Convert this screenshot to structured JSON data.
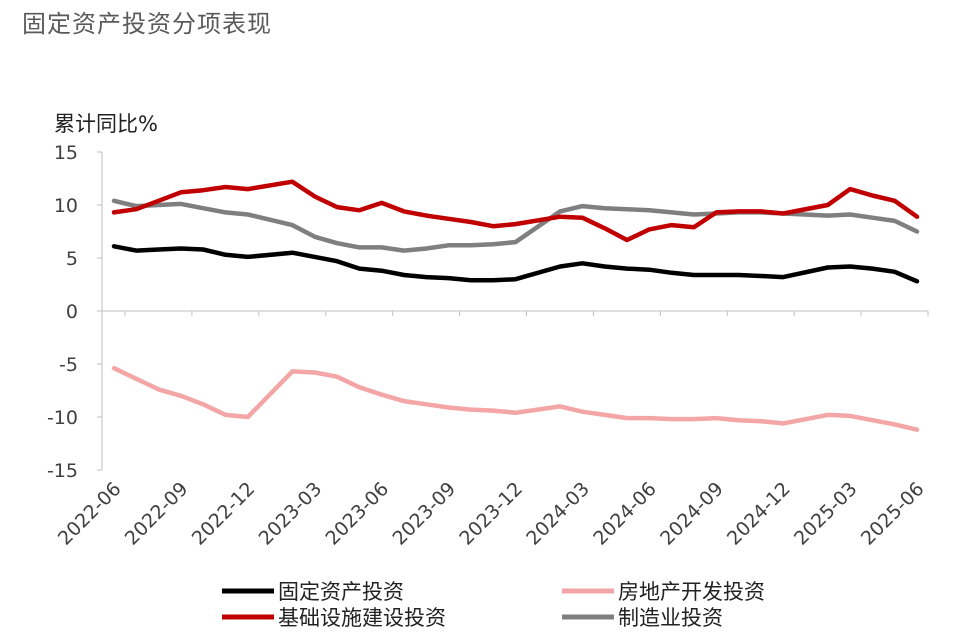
{
  "page": {
    "title": "固定资产投资分项表现"
  },
  "chart_data": {
    "type": "line",
    "ylabel": "累计同比%",
    "ylim": [
      -15,
      15
    ],
    "yticks": [
      "15",
      "10",
      "5",
      "0",
      "-5",
      "-10",
      "-15"
    ],
    "x": [
      "2022-06",
      "2022-07",
      "2022-08",
      "2022-09",
      "2022-10",
      "2022-11",
      "2022-12",
      "2023-01",
      "2023-02",
      "2023-03",
      "2023-04",
      "2023-05",
      "2023-06",
      "2023-07",
      "2023-08",
      "2023-09",
      "2023-10",
      "2023-11",
      "2023-12",
      "2024-01",
      "2024-02",
      "2024-03",
      "2024-04",
      "2024-05",
      "2024-06",
      "2024-07",
      "2024-08",
      "2024-09",
      "2024-10",
      "2024-11",
      "2024-12",
      "2025-01",
      "2025-02",
      "2025-03",
      "2025-04",
      "2025-05",
      "2025-06"
    ],
    "xtick_labels": [
      "2022-06",
      "2022-09",
      "2022-12",
      "2023-03",
      "2023-06",
      "2023-09",
      "2023-12",
      "2024-03",
      "2024-06",
      "2024-09",
      "2024-12",
      "2025-03",
      "2025-06"
    ],
    "grid": false,
    "legend_position": "bottom",
    "series": [
      {
        "name": "固定资产投资",
        "color": "#000000",
        "values": [
          6.1,
          5.7,
          5.8,
          5.9,
          5.8,
          5.3,
          5.1,
          null,
          5.5,
          5.1,
          4.7,
          4.0,
          3.8,
          3.4,
          3.2,
          3.1,
          2.9,
          2.9,
          3.0,
          null,
          4.2,
          4.5,
          4.2,
          4.0,
          3.9,
          3.6,
          3.4,
          3.4,
          3.4,
          3.3,
          3.2,
          null,
          4.1,
          4.2,
          4.0,
          3.7,
          2.8
        ]
      },
      {
        "name": "房地产开发投资",
        "color": "#f4a6a6",
        "values": [
          -5.4,
          -6.4,
          -7.4,
          -8.0,
          -8.8,
          -9.8,
          -10.0,
          null,
          -5.7,
          -5.8,
          -6.2,
          -7.2,
          -7.9,
          -8.5,
          -8.8,
          -9.1,
          -9.3,
          -9.4,
          -9.6,
          null,
          -9.0,
          -9.5,
          -9.8,
          -10.1,
          -10.1,
          -10.2,
          -10.2,
          -10.1,
          -10.3,
          -10.4,
          -10.6,
          null,
          -9.8,
          -9.9,
          -10.3,
          -10.7,
          -11.2
        ]
      },
      {
        "name": "基础设施建设投资",
        "color": "#c00000",
        "values": [
          9.3,
          9.6,
          10.4,
          11.2,
          11.4,
          11.7,
          11.5,
          null,
          12.2,
          10.8,
          9.8,
          9.5,
          10.2,
          9.4,
          9.0,
          8.7,
          8.4,
          8.0,
          8.2,
          null,
          8.9,
          8.8,
          7.8,
          6.7,
          7.7,
          8.1,
          7.9,
          9.3,
          9.4,
          9.4,
          9.2,
          null,
          10.0,
          11.5,
          10.9,
          10.4,
          8.9
        ]
      },
      {
        "name": "制造业投资",
        "color": "#7f7f7f",
        "values": [
          10.4,
          9.9,
          10.0,
          10.1,
          9.7,
          9.3,
          9.1,
          null,
          8.1,
          7.0,
          6.4,
          6.0,
          6.0,
          5.7,
          5.9,
          6.2,
          6.2,
          6.3,
          6.5,
          null,
          9.4,
          9.9,
          9.7,
          9.6,
          9.5,
          9.3,
          9.1,
          9.2,
          9.3,
          9.3,
          9.2,
          null,
          9.0,
          9.1,
          8.8,
          8.5,
          7.5
        ]
      }
    ]
  }
}
